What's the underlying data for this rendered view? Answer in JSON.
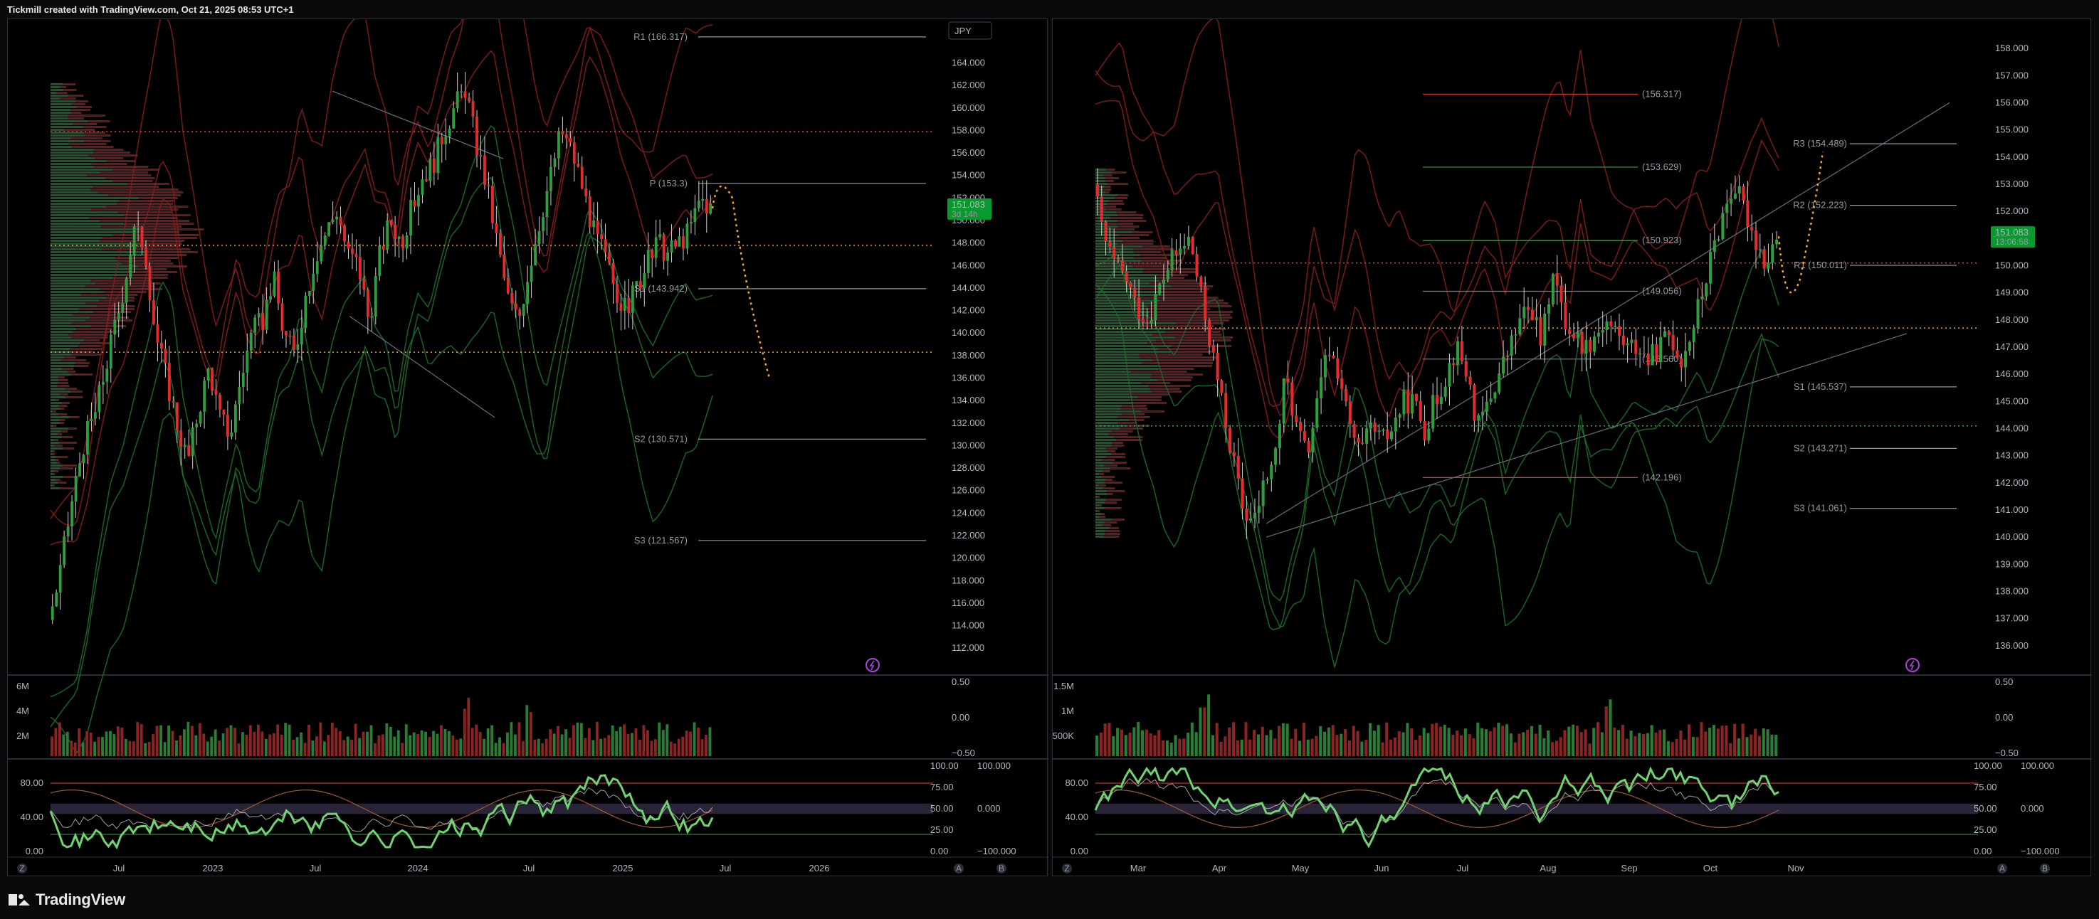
{
  "header": {
    "credit": "Tickmill created with TradingView.com, Oct 21, 2025 08:53 UTC+1"
  },
  "footer": {
    "brand": "TradingView",
    "brand_icon": "tradingview-logo-icon"
  },
  "colors": {
    "bull": "#2e9e3e",
    "bear": "#e52b2b",
    "pivot_line": "#9598a1",
    "resistance": "#e53935",
    "support": "#43a047",
    "dotted_orange": "#f5a623",
    "dotted_red": "#e53935",
    "price_badge": "#089a2e",
    "projection": "#f5a623"
  },
  "chart_data": [
    {
      "id": "left",
      "type": "candlestick",
      "symbol_currency": "JPY",
      "timeframe_hint": "weekly",
      "x_ticks": [
        "Jul",
        "2023",
        "Jul",
        "2024",
        "Jul",
        "2025",
        "Jul",
        "2026"
      ],
      "x_tick_positions": [
        0.08,
        0.19,
        0.31,
        0.43,
        0.56,
        0.67,
        0.79,
        0.9
      ],
      "y_ticks": [
        "164.000",
        "162.000",
        "160.000",
        "158.000",
        "156.000",
        "154.000",
        "152.000",
        "150.000",
        "148.000",
        "146.000",
        "144.000",
        "142.000",
        "140.000",
        "138.000",
        "136.000",
        "134.000",
        "132.000",
        "130.000",
        "128.000",
        "126.000",
        "124.000",
        "122.000",
        "120.000",
        "118.000",
        "116.000",
        "114.000",
        "112.000"
      ],
      "ylim": [
        111,
        166.5
      ],
      "current_price": "151.083",
      "countdown": "3d 14h",
      "pivots": [
        {
          "label": "R1 (166.317)",
          "value": 166.317
        },
        {
          "label": "P (153.3)",
          "value": 153.3
        },
        {
          "label": "S1 (143.942)",
          "value": 143.942
        },
        {
          "label": "S2 (130.571)",
          "value": 130.571
        },
        {
          "label": "S3 (121.567)",
          "value": 121.567
        }
      ],
      "horizontal_levels": [
        {
          "value": 157.9,
          "style": "dotted-red"
        },
        {
          "value": 147.8,
          "style": "dotted-orange"
        },
        {
          "value": 138.3,
          "style": "dotted-orange"
        }
      ],
      "price_path": [
        [
          0.0,
          114.5
        ],
        [
          0.012,
          118
        ],
        [
          0.025,
          124
        ],
        [
          0.04,
          130
        ],
        [
          0.055,
          133
        ],
        [
          0.07,
          138
        ],
        [
          0.085,
          143
        ],
        [
          0.1,
          149
        ],
        [
          0.112,
          148
        ],
        [
          0.125,
          140
        ],
        [
          0.138,
          136
        ],
        [
          0.15,
          132
        ],
        [
          0.163,
          128.5
        ],
        [
          0.175,
          133
        ],
        [
          0.188,
          137
        ],
        [
          0.2,
          132.5
        ],
        [
          0.213,
          131
        ],
        [
          0.225,
          136
        ],
        [
          0.238,
          140
        ],
        [
          0.25,
          141
        ],
        [
          0.263,
          145
        ],
        [
          0.275,
          140
        ],
        [
          0.288,
          138
        ],
        [
          0.3,
          143
        ],
        [
          0.313,
          147
        ],
        [
          0.325,
          149
        ],
        [
          0.338,
          151
        ],
        [
          0.35,
          147
        ],
        [
          0.363,
          146
        ],
        [
          0.375,
          141
        ],
        [
          0.388,
          147
        ],
        [
          0.4,
          150
        ],
        [
          0.413,
          148
        ],
        [
          0.425,
          151
        ],
        [
          0.438,
          154
        ],
        [
          0.45,
          155
        ],
        [
          0.463,
          158
        ],
        [
          0.475,
          160
        ],
        [
          0.488,
          161.8
        ],
        [
          0.5,
          157
        ],
        [
          0.513,
          153
        ],
        [
          0.525,
          148
        ],
        [
          0.538,
          143
        ],
        [
          0.55,
          141
        ],
        [
          0.563,
          146
        ],
        [
          0.575,
          150
        ],
        [
          0.588,
          154
        ],
        [
          0.6,
          158
        ],
        [
          0.613,
          156
        ],
        [
          0.625,
          153
        ],
        [
          0.638,
          149
        ],
        [
          0.65,
          147
        ],
        [
          0.663,
          144
        ],
        [
          0.675,
          142
        ],
        [
          0.688,
          144
        ],
        [
          0.7,
          146
        ],
        [
          0.713,
          148
        ],
        [
          0.725,
          147
        ],
        [
          0.738,
          148
        ],
        [
          0.75,
          149
        ],
        [
          0.763,
          152
        ],
        [
          0.775,
          151.08
        ]
      ]
    },
    {
      "id": "right",
      "type": "candlestick",
      "timeframe_hint": "daily",
      "x_ticks": [
        "Mar",
        "Apr",
        "May",
        "Jun",
        "Jul",
        "Aug",
        "Sep",
        "Oct",
        "Nov"
      ],
      "x_tick_positions": [
        0.05,
        0.145,
        0.24,
        0.335,
        0.43,
        0.53,
        0.625,
        0.72,
        0.82
      ],
      "y_ticks": [
        "158.000",
        "157.000",
        "156.000",
        "155.000",
        "154.000",
        "153.000",
        "152.000",
        "151.000",
        "150.000",
        "149.000",
        "148.000",
        "147.000",
        "146.000",
        "145.000",
        "144.000",
        "143.000",
        "142.000",
        "141.000",
        "140.000",
        "139.000",
        "138.000",
        "137.000",
        "136.000"
      ],
      "ylim": [
        135.5,
        158.5
      ],
      "current_price": "151.083",
      "countdown": "13:06:58",
      "pivots": [
        {
          "label": "R3 (154.489)",
          "value": 154.489
        },
        {
          "label": "R2 (152.223)",
          "value": 152.223
        },
        {
          "label": "R1 (150.011)",
          "value": 150.011
        },
        {
          "label": "S1 (145.537)",
          "value": 145.537
        },
        {
          "label": "S2 (143.271)",
          "value": 143.271
        },
        {
          "label": "S3 (141.061)",
          "value": 141.061
        }
      ],
      "fib_levels": [
        {
          "label": "(156.317)",
          "value": 156.317,
          "color": "red"
        },
        {
          "label": "(153.629)",
          "value": 153.629,
          "color": "green"
        },
        {
          "label": "(150.923)",
          "value": 150.923,
          "color": "green"
        },
        {
          "label": "(149.056)",
          "value": 149.056,
          "color": "grey"
        },
        {
          "label": "(146.560)",
          "value": 146.56,
          "color": "grey"
        },
        {
          "label": "(142.196)",
          "value": 142.196,
          "color": "red"
        }
      ],
      "horizontal_levels": [
        {
          "value": 150.1,
          "style": "dotted-red"
        },
        {
          "value": 147.7,
          "style": "dotted-orange"
        },
        {
          "value": 144.1,
          "style": "dotted-green"
        }
      ],
      "price_path": [
        [
          0.0,
          153
        ],
        [
          0.012,
          151
        ],
        [
          0.025,
          150
        ],
        [
          0.038,
          149.5
        ],
        [
          0.05,
          148.5
        ],
        [
          0.063,
          148
        ],
        [
          0.075,
          149
        ],
        [
          0.088,
          150
        ],
        [
          0.1,
          150.5
        ],
        [
          0.113,
          151
        ],
        [
          0.125,
          149
        ],
        [
          0.138,
          147
        ],
        [
          0.15,
          145
        ],
        [
          0.163,
          143
        ],
        [
          0.175,
          141
        ],
        [
          0.188,
          140.5
        ],
        [
          0.2,
          142
        ],
        [
          0.213,
          143
        ],
        [
          0.225,
          146
        ],
        [
          0.238,
          144
        ],
        [
          0.25,
          143
        ],
        [
          0.263,
          145
        ],
        [
          0.275,
          147
        ],
        [
          0.288,
          146
        ],
        [
          0.3,
          144
        ],
        [
          0.313,
          143
        ],
        [
          0.325,
          144
        ],
        [
          0.338,
          143.5
        ],
        [
          0.35,
          144
        ],
        [
          0.363,
          145
        ],
        [
          0.375,
          145
        ],
        [
          0.388,
          144
        ],
        [
          0.4,
          145
        ],
        [
          0.413,
          146
        ],
        [
          0.425,
          147
        ],
        [
          0.438,
          146
        ],
        [
          0.45,
          144
        ],
        [
          0.463,
          145
        ],
        [
          0.475,
          146
        ],
        [
          0.488,
          147
        ],
        [
          0.5,
          148
        ],
        [
          0.513,
          148.5
        ],
        [
          0.525,
          147
        ],
        [
          0.538,
          150
        ],
        [
          0.55,
          148
        ],
        [
          0.563,
          147.5
        ],
        [
          0.575,
          147
        ],
        [
          0.588,
          147.5
        ],
        [
          0.6,
          148
        ],
        [
          0.613,
          147.5
        ],
        [
          0.625,
          147
        ],
        [
          0.638,
          147
        ],
        [
          0.65,
          146.5
        ],
        [
          0.663,
          147
        ],
        [
          0.675,
          147.5
        ],
        [
          0.688,
          146.5
        ],
        [
          0.7,
          147.5
        ],
        [
          0.713,
          149
        ],
        [
          0.725,
          150.5
        ],
        [
          0.738,
          152
        ],
        [
          0.75,
          153
        ],
        [
          0.763,
          152
        ],
        [
          0.775,
          151
        ],
        [
          0.788,
          150
        ],
        [
          0.8,
          151.08
        ]
      ]
    }
  ],
  "volume_panes": [
    {
      "id": "left",
      "y_ticks": [
        "6M",
        "4M",
        "2M"
      ],
      "right_ticks": [
        "0.50",
        "0.00",
        "−0.50"
      ]
    },
    {
      "id": "right",
      "y_ticks": [
        "1.5M",
        "1M",
        "500K"
      ],
      "right_ticks": [
        "0.50",
        "0.00",
        "−0.50"
      ]
    }
  ],
  "oscillator_panes": [
    {
      "id": "left",
      "y_ticks": [
        "80.00",
        "40.00",
        "0.00"
      ],
      "right_ticks": [
        "100.00",
        "75.00",
        "50.00",
        "25.00",
        "0.00"
      ],
      "far_right_ticks": [
        "100.000",
        "0.000",
        "−100.000"
      ]
    },
    {
      "id": "right",
      "y_ticks": [
        "80.00",
        "40.00",
        "0.00"
      ],
      "right_ticks": [
        "100.00",
        "75.00",
        "50.00",
        "25.00",
        "0.00"
      ],
      "far_right_ticks": [
        "100.000",
        "0.000",
        "−100.000"
      ]
    }
  ],
  "axis_buttons": {
    "z": "Z",
    "a": "A",
    "b": "B"
  }
}
